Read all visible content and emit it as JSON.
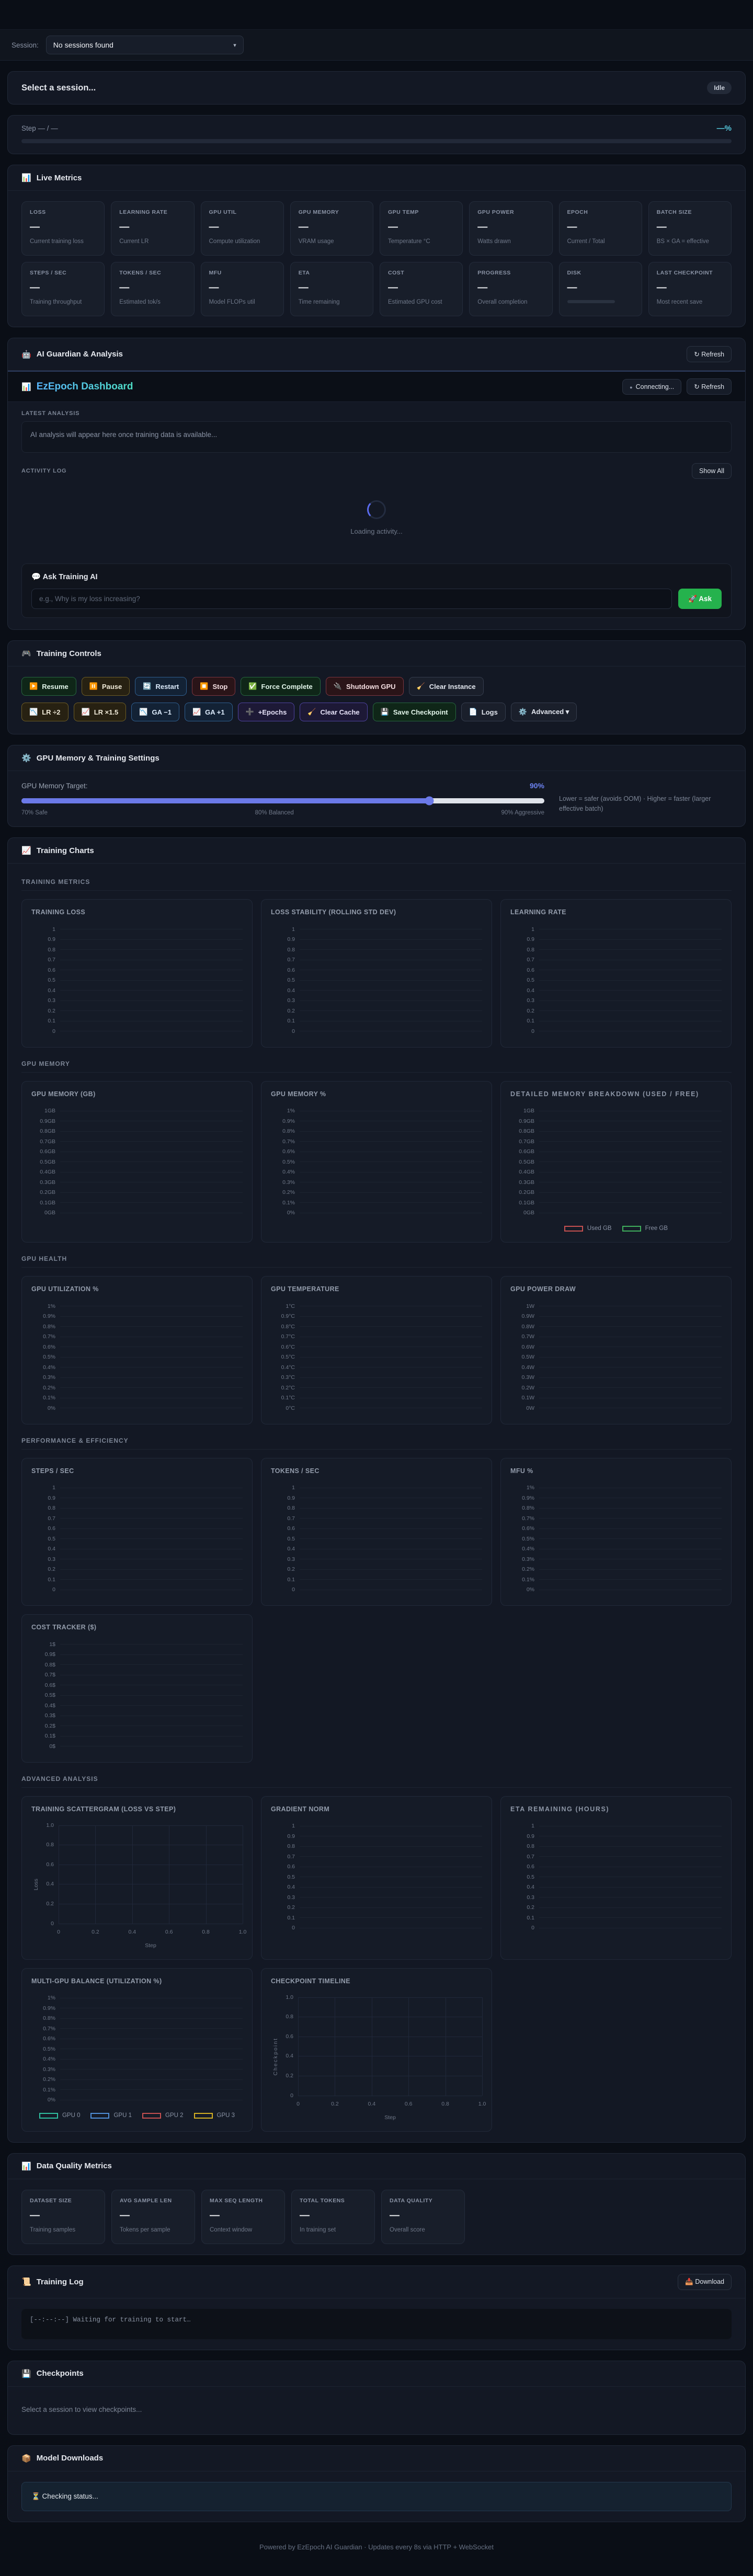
{
  "session_bar": {
    "label": "Session:",
    "selected": "No sessions found",
    "chevron": "▾"
  },
  "session_panel": {
    "title": "Select a session...",
    "status_badge": "Idle"
  },
  "progress": {
    "step_label": "Step — / —",
    "percent": "—%"
  },
  "live_metrics": {
    "icon": "📊",
    "title": "Live Metrics",
    "cards": [
      {
        "label": "LOSS",
        "value": "—",
        "desc": "Current training loss"
      },
      {
        "label": "LEARNING RATE",
        "value": "—",
        "desc": "Current LR"
      },
      {
        "label": "GPU UTIL",
        "value": "—",
        "desc": "Compute utilization"
      },
      {
        "label": "GPU MEMORY",
        "value": "—",
        "desc": "VRAM usage"
      },
      {
        "label": "GPU TEMP",
        "value": "—",
        "desc": "Temperature °C"
      },
      {
        "label": "GPU POWER",
        "value": "—",
        "desc": "Watts drawn"
      },
      {
        "label": "EPOCH",
        "value": "—",
        "desc": "Current / Total"
      },
      {
        "label": "BATCH SIZE",
        "value": "—",
        "desc": "BS × GA = effective"
      },
      {
        "label": "STEPS / SEC",
        "value": "—",
        "desc": "Training throughput"
      },
      {
        "label": "TOKENS / SEC",
        "value": "—",
        "desc": "Estimated tok/s"
      },
      {
        "label": "MFU",
        "value": "—",
        "desc": "Model FLOPs util"
      },
      {
        "label": "ETA",
        "value": "—",
        "desc": "Time remaining"
      },
      {
        "label": "COST",
        "value": "—",
        "desc": "Estimated GPU cost"
      },
      {
        "label": "PROGRESS",
        "value": "—",
        "desc": "Overall completion"
      },
      {
        "label": "DISK",
        "value": "—",
        "bar": true
      },
      {
        "label": "LAST CHECKPOINT",
        "value": "—",
        "desc": "Most recent save"
      }
    ]
  },
  "guardian": {
    "icon": "🤖",
    "title": "AI Guardian & Analysis",
    "refresh": "↻ Refresh",
    "dashboard": {
      "icon": "📊",
      "title": "EzEpoch Dashboard",
      "connecting": "Connecting...",
      "refresh": "↻ Refresh"
    },
    "latest_label": "LATEST ANALYSIS",
    "analysis_placeholder": "AI analysis will appear here once training data is available...",
    "activity_label": "ACTIVITY LOG",
    "show_all": "Show All",
    "loading": "Loading activity...",
    "ask": {
      "icon": "💬",
      "title": "Ask Training AI",
      "placeholder": "e.g., Why is my loss increasing?",
      "button": "🚀 Ask"
    }
  },
  "controls": {
    "icon": "🎮",
    "title": "Training Controls",
    "rows": [
      [
        {
          "icon": "▶️",
          "label": "Resume",
          "style": "green"
        },
        {
          "icon": "⏸️",
          "label": "Pause",
          "style": "olive"
        },
        {
          "icon": "🔄",
          "label": "Restart",
          "style": "blue"
        },
        {
          "icon": "⏹️",
          "label": "Stop",
          "style": "red"
        },
        {
          "icon": "✅",
          "label": "Force Complete",
          "style": "green"
        },
        {
          "icon": "🔌",
          "label": "Shutdown GPU",
          "style": "red"
        },
        {
          "icon": "🧹",
          "label": "Clear Instance",
          "style": "gray"
        }
      ],
      [
        {
          "icon": "📉",
          "label": "LR ÷2",
          "style": "olive"
        },
        {
          "icon": "📈",
          "label": "LR ×1.5",
          "style": "olive"
        },
        {
          "icon": "📉",
          "label": "GA −1",
          "style": "blue"
        },
        {
          "icon": "📈",
          "label": "GA +1",
          "style": "blue"
        },
        {
          "icon": "➕",
          "label": "+Epochs",
          "style": "purple"
        },
        {
          "icon": "🧹",
          "label": "Clear Cache",
          "style": "purple"
        },
        {
          "icon": "💾",
          "label": "Save Checkpoint",
          "style": "green"
        },
        {
          "icon": "📄",
          "label": "Logs",
          "style": "gray"
        },
        {
          "icon": "⚙️",
          "label": "Advanced ▾",
          "style": "gray"
        }
      ]
    ]
  },
  "gpu_settings": {
    "icon": "⚙️",
    "title": "GPU Memory & Training Settings",
    "target_label": "GPU Memory Target:",
    "value": "90%",
    "slider_percent": 78,
    "scale": [
      "70% Safe",
      "80% Balanced",
      "90% Aggressive"
    ],
    "hint": "Lower = safer (avoids OOM) · Higher = faster (larger effective batch)"
  },
  "charts_panel": {
    "icon": "📈",
    "title": "Training Charts",
    "sections": [
      {
        "label": "TRAINING METRICS",
        "charts": [
          {
            "title": "TRAINING LOSS",
            "type": "line",
            "yticks": [
              "1",
              "0.9",
              "0.8",
              "0.7",
              "0.6",
              "0.5",
              "0.4",
              "0.3",
              "0.2",
              "0.1",
              "0"
            ]
          },
          {
            "title": "LOSS STABILITY (ROLLING STD DEV)",
            "type": "line",
            "yticks": [
              "1",
              "0.9",
              "0.8",
              "0.7",
              "0.6",
              "0.5",
              "0.4",
              "0.3",
              "0.2",
              "0.1",
              "0"
            ]
          },
          {
            "title": "LEARNING RATE",
            "type": "line",
            "yticks": [
              "1",
              "0.9",
              "0.8",
              "0.7",
              "0.6",
              "0.5",
              "0.4",
              "0.3",
              "0.2",
              "0.1",
              "0"
            ]
          }
        ]
      },
      {
        "label": "GPU MEMORY",
        "charts": [
          {
            "title": "GPU MEMORY (GB)",
            "type": "line",
            "yticks": [
              "1GB",
              "0.9GB",
              "0.8GB",
              "0.7GB",
              "0.6GB",
              "0.5GB",
              "0.4GB",
              "0.3GB",
              "0.2GB",
              "0.1GB",
              "0GB"
            ]
          },
          {
            "title": "GPU MEMORY %",
            "type": "line",
            "yticks": [
              "1%",
              "0.9%",
              "0.8%",
              "0.7%",
              "0.6%",
              "0.5%",
              "0.4%",
              "0.3%",
              "0.2%",
              "0.1%",
              "0%"
            ]
          },
          {
            "title": "DETAILED MEMORY BREAKDOWN (USED / FREE)",
            "type": "line",
            "alt": true,
            "yticks": [
              "1GB",
              "0.9GB",
              "0.8GB",
              "0.7GB",
              "0.6GB",
              "0.5GB",
              "0.4GB",
              "0.3GB",
              "0.2GB",
              "0.1GB",
              "0GB"
            ],
            "legend": [
              {
                "label": "Used GB",
                "color": "#c65050"
              },
              {
                "label": "Free GB",
                "color": "#3fae5c"
              }
            ]
          }
        ]
      },
      {
        "label": "GPU HEALTH",
        "charts": [
          {
            "title": "GPU UTILIZATION %",
            "type": "line",
            "yticks": [
              "1%",
              "0.9%",
              "0.8%",
              "0.7%",
              "0.6%",
              "0.5%",
              "0.4%",
              "0.3%",
              "0.2%",
              "0.1%",
              "0%"
            ]
          },
          {
            "title": "GPU TEMPERATURE",
            "type": "line",
            "yticks": [
              "1°C",
              "0.9°C",
              "0.8°C",
              "0.7°C",
              "0.6°C",
              "0.5°C",
              "0.4°C",
              "0.3°C",
              "0.2°C",
              "0.1°C",
              "0°C"
            ]
          },
          {
            "title": "GPU POWER DRAW",
            "type": "line",
            "yticks": [
              "1W",
              "0.9W",
              "0.8W",
              "0.7W",
              "0.6W",
              "0.5W",
              "0.4W",
              "0.3W",
              "0.2W",
              "0.1W",
              "0W"
            ]
          }
        ]
      },
      {
        "label": "PERFORMANCE & EFFICIENCY",
        "charts": [
          {
            "title": "STEPS / SEC",
            "type": "line",
            "yticks": [
              "1",
              "0.9",
              "0.8",
              "0.7",
              "0.6",
              "0.5",
              "0.4",
              "0.3",
              "0.2",
              "0.1",
              "0"
            ]
          },
          {
            "title": "TOKENS / SEC",
            "type": "line",
            "yticks": [
              "1",
              "0.9",
              "0.8",
              "0.7",
              "0.6",
              "0.5",
              "0.4",
              "0.3",
              "0.2",
              "0.1",
              "0"
            ]
          },
          {
            "title": "MFU %",
            "type": "line",
            "yticks": [
              "1%",
              "0.9%",
              "0.8%",
              "0.7%",
              "0.6%",
              "0.5%",
              "0.4%",
              "0.3%",
              "0.2%",
              "0.1%",
              "0%"
            ]
          }
        ]
      },
      {
        "label": null,
        "charts": [
          {
            "title": "COST TRACKER ($)",
            "type": "line",
            "yticks": [
              "1$",
              "0.9$",
              "0.8$",
              "0.7$",
              "0.6$",
              "0.5$",
              "0.4$",
              "0.3$",
              "0.2$",
              "0.1$",
              "0$"
            ]
          }
        ]
      },
      {
        "label": "ADVANCED ANALYSIS",
        "charts": [
          {
            "title": "TRAINING SCATTERGRAM (LOSS VS STEP)",
            "type": "scatter",
            "ylabel": "Loss",
            "xlabel": "Step",
            "yticks": [
              "1.0",
              "0.8",
              "0.6",
              "0.4",
              "0.2",
              "0"
            ],
            "xticks": [
              "0",
              "0.2",
              "0.4",
              "0.6",
              "0.8",
              "1.0"
            ]
          },
          {
            "title": "GRADIENT NORM",
            "type": "line",
            "yticks": [
              "1",
              "0.9",
              "0.8",
              "0.7",
              "0.6",
              "0.5",
              "0.4",
              "0.3",
              "0.2",
              "0.1",
              "0"
            ]
          },
          {
            "title": "ETA REMAINING (HOURS)",
            "type": "line",
            "alt": true,
            "yticks": [
              "1",
              "0.9",
              "0.8",
              "0.7",
              "0.6",
              "0.5",
              "0.4",
              "0.3",
              "0.2",
              "0.1",
              "0"
            ]
          }
        ]
      },
      {
        "label": null,
        "charts": [
          {
            "title": "MULTI-GPU BALANCE (UTILIZATION %)",
            "type": "line",
            "yticks": [
              "1%",
              "0.9%",
              "0.8%",
              "0.7%",
              "0.6%",
              "0.5%",
              "0.4%",
              "0.3%",
              "0.2%",
              "0.1%",
              "0%"
            ],
            "legend": [
              {
                "label": "GPU 0",
                "color": "#2fbfa0"
              },
              {
                "label": "GPU 1",
                "color": "#4f8fd9"
              },
              {
                "label": "GPU 2",
                "color": "#c65050"
              },
              {
                "label": "GPU 3",
                "color": "#d4b023"
              }
            ]
          },
          {
            "title": "CHECKPOINT TIMELINE",
            "type": "scatter",
            "ylabel": "Checkpoint",
            "ylabel_spaced": true,
            "xlabel": "Step",
            "yticks": [
              "1.0",
              "0.8",
              "0.6",
              "0.4",
              "0.2",
              "0"
            ],
            "xticks": [
              "0",
              "0.2",
              "0.4",
              "0.6",
              "0.8",
              "1.0"
            ]
          }
        ]
      }
    ]
  },
  "data_quality": {
    "icon": "📊",
    "title": "Data Quality Metrics",
    "cards": [
      {
        "label": "DATASET SIZE",
        "value": "—",
        "desc": "Training samples"
      },
      {
        "label": "AVG SAMPLE LEN",
        "value": "—",
        "desc": "Tokens per sample"
      },
      {
        "label": "MAX SEQ LENGTH",
        "value": "—",
        "desc": "Context window"
      },
      {
        "label": "TOTAL TOKENS",
        "value": "—",
        "desc": "In training set"
      },
      {
        "label": "DATA QUALITY",
        "value": "—",
        "desc": "Overall score"
      }
    ]
  },
  "training_log": {
    "icon": "📜",
    "title": "Training Log",
    "download": "📥 Download",
    "log_line": "[--:--:--] Waiting for training to start…"
  },
  "checkpoints": {
    "icon": "💾",
    "title": "Checkpoints",
    "empty": "Select a session to view checkpoints..."
  },
  "downloads": {
    "icon": "📦",
    "title": "Model Downloads",
    "status": "⏳ Checking status..."
  },
  "footer": "Powered by EzEpoch AI Guardian · Updates every 8s via HTTP + WebSocket"
}
